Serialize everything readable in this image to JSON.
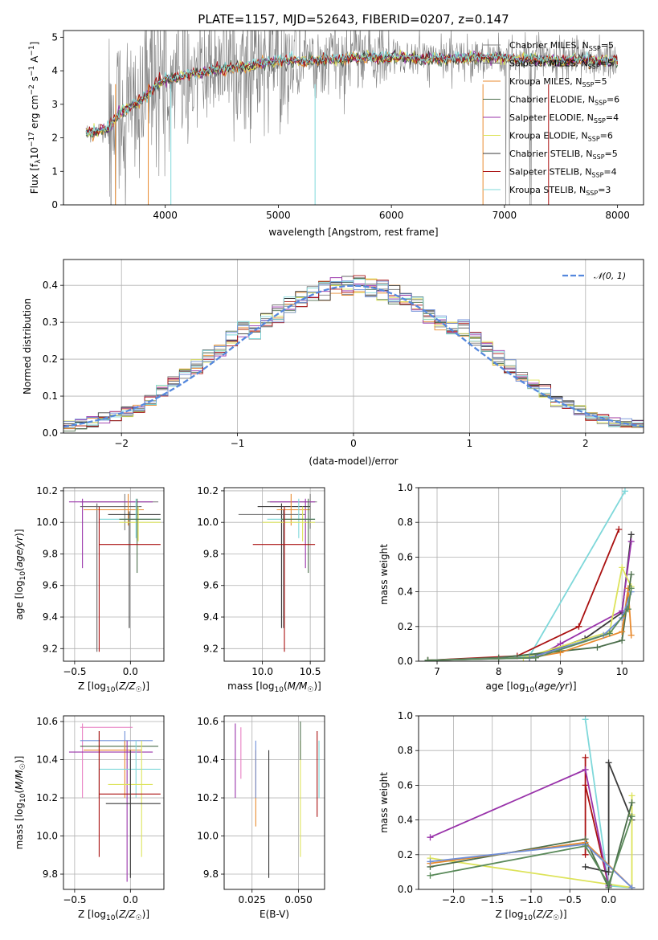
{
  "title": "PLATE=1157, MJD=52643, FIBERID=0207, z=0.147",
  "colors": {
    "c_miles": "#808080",
    "s_miles": "#666666",
    "k_miles": "#e88a2e",
    "c_elodie": "#4b6e4b",
    "s_elodie": "#9933aa",
    "k_elodie": "#dde35a",
    "c_stelib": "#3a3a3a",
    "s_stelib": "#aa1111",
    "k_stelib": "#7fd8da",
    "gauss": "#5588dd",
    "pink": "#e87fc2",
    "blue": "#6f8fd8",
    "green": "#5a8a5a"
  },
  "chart_data": [
    {
      "id": "spectrum",
      "type": "line",
      "xlabel": "wavelength [Angstrom, rest frame]",
      "ylabel": "Flux [f_λ 10^-17 erg cm^-2 s^-1 A^-1]",
      "xlim": [
        3100,
        8230
      ],
      "ylim": [
        0,
        5.2
      ],
      "xticks": [
        4000,
        5000,
        6000,
        7000,
        8000
      ],
      "yticks": [
        0,
        1,
        2,
        3,
        4,
        5
      ],
      "legend": [
        {
          "label": "Chabrier MILES, N",
          "sub": "SSP",
          "n": "=5",
          "color": "#808080"
        },
        {
          "label": "Salpeter MILES, N",
          "sub": "SSP",
          "n": "=5",
          "color": "#666666"
        },
        {
          "label": "Kroupa MILES, N",
          "sub": "SSP",
          "n": "=5",
          "color": "#e88a2e"
        },
        {
          "label": "Chabrier ELODIE, N",
          "sub": "SSP",
          "n": "=6",
          "color": "#4b6e4b"
        },
        {
          "label": "Salpeter ELODIE, N",
          "sub": "SSP",
          "n": "=4",
          "color": "#9933aa"
        },
        {
          "label": "Kroupa ELODIE, N",
          "sub": "SSP",
          "n": "=6",
          "color": "#dde35a"
        },
        {
          "label": "Chabrier STELIB, N",
          "sub": "SSP",
          "n": "=5",
          "color": "#3a3a3a"
        },
        {
          "label": "Salpeter STELIB, N",
          "sub": "SSP",
          "n": "=4",
          "color": "#aa1111"
        },
        {
          "label": "Kroupa STELIB, N",
          "sub": "SSP",
          "n": "=3",
          "color": "#7fd8da"
        }
      ],
      "continuum": {
        "x": [
          3300,
          3400,
          3500,
          3600,
          3700,
          3800,
          3900,
          4000,
          4100,
          4200,
          4300,
          4500,
          4700,
          4900,
          5100,
          5300,
          5500,
          5700,
          5900,
          6100,
          6300,
          6500,
          6700,
          6900,
          7100,
          7300,
          7500,
          7700,
          7900,
          8000
        ],
        "y": [
          2.15,
          2.2,
          2.3,
          2.75,
          2.95,
          3.15,
          3.5,
          3.75,
          3.8,
          3.9,
          3.95,
          4.05,
          4.1,
          4.25,
          4.3,
          4.3,
          4.35,
          4.4,
          4.4,
          4.4,
          4.35,
          4.35,
          4.4,
          4.4,
          4.35,
          4.35,
          4.3,
          4.35,
          4.3,
          4.3
        ]
      }
    },
    {
      "id": "residuals",
      "type": "step",
      "xlabel": "(data-model)/error",
      "ylabel": "Normed distribution",
      "xlim": [
        -2.5,
        2.5
      ],
      "ylim": [
        0,
        0.47
      ],
      "xticks": [
        -2,
        -1,
        0,
        1,
        2
      ],
      "yticks": [
        0.0,
        0.1,
        0.2,
        0.3,
        0.4
      ],
      "gauss_label": "𝒩(0, 1)",
      "bin_width": 0.1
    },
    {
      "id": "age_vs_Z",
      "type": "errorbar",
      "xlabel": "Z [log₁₀(Z/Z☉)]",
      "ylabel": "age [log₁₀(age/yr)]",
      "xlim": [
        -0.6,
        0.3
      ],
      "ylim": [
        9.12,
        10.22
      ],
      "xticks": [
        -0.5,
        0.0
      ],
      "yticks": [
        9.2,
        9.4,
        9.6,
        9.8,
        10.0,
        10.2
      ],
      "points": [
        {
          "x": -0.05,
          "xe": [
            -0.45,
            0.25
          ],
          "y": 10.13,
          "ye": [
            9.95,
            10.18
          ],
          "c": "#808080"
        },
        {
          "x": -0.43,
          "xe": [
            -0.55,
            0.2
          ],
          "y": 10.13,
          "ye": [
            9.71,
            10.15
          ],
          "c": "#9933aa"
        },
        {
          "x": -0.3,
          "xe": [
            -0.45,
            0.1
          ],
          "y": 10.1,
          "ye": [
            9.18,
            10.12
          ],
          "c": "#666666"
        },
        {
          "x": -0.02,
          "xe": [
            -0.42,
            0.12
          ],
          "y": 10.08,
          "ye": [
            9.98,
            10.18
          ],
          "c": "#e88a2e"
        },
        {
          "x": -0.01,
          "xe": [
            -0.2,
            0.27
          ],
          "y": 10.05,
          "ye": [
            9.33,
            10.07
          ],
          "c": "#3a3a3a"
        },
        {
          "x": 0.05,
          "xe": [
            -0.28,
            0.27
          ],
          "y": 10.02,
          "ye": [
            9.9,
            10.15
          ],
          "c": "#7fd8da"
        },
        {
          "x": 0.07,
          "xe": [
            -0.1,
            0.27
          ],
          "y": 10.0,
          "ye": [
            9.88,
            10.1
          ],
          "c": "#dde35a"
        },
        {
          "x": 0.06,
          "xe": [
            -0.1,
            0.27
          ],
          "y": 10.02,
          "ye": [
            9.68,
            10.15
          ],
          "c": "#4b6e4b"
        },
        {
          "x": -0.28,
          "xe": [
            -0.28,
            0.27
          ],
          "y": 9.86,
          "ye": [
            9.18,
            10.1
          ],
          "c": "#aa1111"
        }
      ]
    },
    {
      "id": "age_vs_mass",
      "type": "errorbar",
      "xlabel": "mass [log₁₀(M/M☉)]",
      "ylabel": "",
      "xlim": [
        9.6,
        10.65
      ],
      "ylim": [
        9.12,
        10.22
      ],
      "xticks": [
        10.0,
        10.5
      ],
      "yticks": [
        9.2,
        9.4,
        9.6,
        9.8,
        10.0,
        10.2
      ],
      "points": [
        {
          "x": 10.5,
          "xe": [
            10.05,
            10.57
          ],
          "y": 10.13,
          "ye": [
            9.96,
            10.18
          ],
          "c": "#808080"
        },
        {
          "x": 10.45,
          "xe": [
            10.08,
            10.55
          ],
          "y": 10.13,
          "ye": [
            9.71,
            10.15
          ],
          "c": "#9933aa"
        },
        {
          "x": 10.2,
          "xe": [
            9.95,
            10.5
          ],
          "y": 10.1,
          "ye": [
            9.33,
            10.12
          ],
          "c": "#3a3a3a"
        },
        {
          "x": 10.3,
          "xe": [
            10.15,
            10.5
          ],
          "y": 10.08,
          "ye": [
            9.98,
            10.18
          ],
          "c": "#e88a2e"
        },
        {
          "x": 10.22,
          "xe": [
            9.75,
            10.45
          ],
          "y": 10.05,
          "ye": [
            9.33,
            10.08
          ],
          "c": "#666666"
        },
        {
          "x": 10.38,
          "xe": [
            10.05,
            10.55
          ],
          "y": 10.02,
          "ye": [
            9.9,
            10.15
          ],
          "c": "#7fd8da"
        },
        {
          "x": 10.42,
          "xe": [
            10.0,
            10.55
          ],
          "y": 10.0,
          "ye": [
            9.88,
            10.1
          ],
          "c": "#dde35a"
        },
        {
          "x": 10.48,
          "xe": [
            10.2,
            10.55
          ],
          "y": 10.02,
          "ye": [
            9.68,
            10.15
          ],
          "c": "#4b6e4b"
        },
        {
          "x": 10.23,
          "xe": [
            9.9,
            10.55
          ],
          "y": 9.86,
          "ye": [
            9.18,
            10.1
          ],
          "c": "#aa1111"
        }
      ]
    },
    {
      "id": "weight_vs_age",
      "type": "line",
      "xlabel": "age [log₁₀(age/yr)]",
      "ylabel": "mass weight",
      "xlim": [
        6.7,
        10.35
      ],
      "ylim": [
        0,
        1.0
      ],
      "xticks": [
        7,
        8,
        9,
        10
      ],
      "yticks": [
        0.0,
        0.2,
        0.4,
        0.6,
        0.8,
        1.0
      ],
      "series": [
        {
          "c": "#7fd8da",
          "x": [
            6.85,
            8.5,
            10.05
          ],
          "y": [
            0.005,
            0.03,
            0.98
          ]
        },
        {
          "c": "#aa1111",
          "x": [
            6.85,
            8.3,
            9.3,
            9.95
          ],
          "y": [
            0.005,
            0.03,
            0.2,
            0.76
          ]
        },
        {
          "c": "#3a3a3a",
          "x": [
            6.85,
            8.5,
            9.4,
            10.0,
            10.15
          ],
          "y": [
            0.005,
            0.02,
            0.13,
            0.28,
            0.73
          ]
        },
        {
          "c": "#9933aa",
          "x": [
            6.85,
            8.6,
            9.0,
            10.0,
            10.15
          ],
          "y": [
            0.005,
            0.02,
            0.1,
            0.29,
            0.69
          ]
        },
        {
          "c": "#dde35a",
          "x": [
            6.85,
            8.4,
            9.8,
            10.0,
            10.15
          ],
          "y": [
            0.005,
            0.02,
            0.17,
            0.54,
            0.43
          ]
        },
        {
          "c": "#4b6e4b",
          "x": [
            6.85,
            8.0,
            9.6,
            10.0,
            10.15
          ],
          "y": [
            0.005,
            0.02,
            0.08,
            0.12,
            0.5
          ]
        },
        {
          "c": "#e88a2e",
          "x": [
            6.85,
            8.5,
            9.0,
            10.0,
            10.1,
            10.15
          ],
          "y": [
            0.005,
            0.02,
            0.05,
            0.17,
            0.42,
            0.15
          ]
        },
        {
          "c": "#6f8fd8",
          "x": [
            6.85,
            8.5,
            9.7,
            10.0,
            10.15
          ],
          "y": [
            0.005,
            0.02,
            0.15,
            0.25,
            0.4
          ]
        },
        {
          "c": "#5a8a5a",
          "x": [
            6.85,
            8.6,
            9.8,
            10.1,
            10.15
          ],
          "y": [
            0.005,
            0.02,
            0.16,
            0.3,
            0.42
          ]
        }
      ]
    },
    {
      "id": "mass_vs_Z",
      "type": "errorbar",
      "xlabel": "Z [log₁₀(Z/Z☉)]",
      "ylabel": "mass [log₁₀(M/M☉)]",
      "xlim": [
        -0.6,
        0.3
      ],
      "ylim": [
        9.72,
        10.63
      ],
      "xticks": [
        -0.5,
        0.0
      ],
      "yticks": [
        9.8,
        10.0,
        10.2,
        10.4,
        10.6
      ],
      "points": [
        {
          "x": -0.43,
          "xe": [
            -0.45,
            0.02
          ],
          "y": 10.57,
          "ye": [
            10.2,
            10.59
          ],
          "c": "#e87fc2"
        },
        {
          "x": -0.05,
          "xe": [
            -0.45,
            0.2
          ],
          "y": 10.5,
          "ye": [
            10.45,
            10.55
          ],
          "c": "#6f8fd8"
        },
        {
          "x": -0.28,
          "xe": [
            -0.45,
            0.25
          ],
          "y": 10.47,
          "ye": [
            10.2,
            10.55
          ],
          "c": "#4b6e4b"
        },
        {
          "x": -0.05,
          "xe": [
            -0.42,
            0.1
          ],
          "y": 10.45,
          "ye": [
            10.2,
            10.5
          ],
          "c": "#e88a2e"
        },
        {
          "x": -0.03,
          "xe": [
            -0.55,
            0.2
          ],
          "y": 10.44,
          "ye": [
            9.76,
            10.5
          ],
          "c": "#9933aa"
        },
        {
          "x": 0.05,
          "xe": [
            -0.28,
            0.27
          ],
          "y": 10.35,
          "ye": [
            10.2,
            10.5
          ],
          "c": "#7fd8da"
        },
        {
          "x": 0.1,
          "xe": [
            -0.2,
            0.2
          ],
          "y": 10.27,
          "ye": [
            9.89,
            10.5
          ],
          "c": "#dde35a"
        },
        {
          "x": -0.28,
          "xe": [
            -0.28,
            0.27
          ],
          "y": 10.22,
          "ye": [
            9.89,
            10.55
          ],
          "c": "#aa1111"
        },
        {
          "x": 0.0,
          "xe": [
            -0.22,
            0.27
          ],
          "y": 10.17,
          "ye": [
            9.78,
            10.45
          ],
          "c": "#3a3a3a"
        }
      ]
    },
    {
      "id": "mass_vs_ebv",
      "type": "errorbar",
      "xlabel": "E(B-V)",
      "ylabel": "",
      "xlim": [
        0.01,
        0.064
      ],
      "ylim": [
        9.72,
        10.63
      ],
      "xticks": [
        0.025,
        0.05
      ],
      "yticks": [
        9.8,
        10.0,
        10.2,
        10.4,
        10.6
      ],
      "points": [
        {
          "x": 0.016,
          "ye": [
            10.2,
            10.59
          ],
          "c": "#9933aa"
        },
        {
          "x": 0.019,
          "ye": [
            10.3,
            10.57
          ],
          "c": "#e87fc2"
        },
        {
          "x": 0.027,
          "ye": [
            10.05,
            10.45
          ],
          "c": "#e88a2e"
        },
        {
          "x": 0.027,
          "ye": [
            10.2,
            10.5
          ],
          "c": "#6f8fd8"
        },
        {
          "x": 0.034,
          "ye": [
            9.78,
            10.45
          ],
          "c": "#3a3a3a"
        },
        {
          "x": 0.051,
          "ye": [
            9.89,
            10.5
          ],
          "c": "#dde35a"
        },
        {
          "x": 0.051,
          "ye": [
            10.4,
            10.6
          ],
          "c": "#4b6e4b"
        },
        {
          "x": 0.06,
          "ye": [
            10.1,
            10.55
          ],
          "c": "#aa1111"
        },
        {
          "x": 0.061,
          "ye": [
            10.2,
            10.5
          ],
          "c": "#7fd8da"
        }
      ]
    },
    {
      "id": "weight_vs_Z",
      "type": "line",
      "xlabel": "Z [log₁₀(Z/Z☉)]",
      "ylabel": "mass weight",
      "xlim": [
        -2.45,
        0.45
      ],
      "ylim": [
        0,
        1.0
      ],
      "xticks": [
        -2.0,
        -1.5,
        -1.0,
        -0.5,
        0.0
      ],
      "yticks": [
        0.0,
        0.2,
        0.4,
        0.6,
        0.8,
        1.0
      ],
      "series": [
        {
          "c": "#7fd8da",
          "x": [
            -0.3,
            0.0,
            0.3
          ],
          "y": [
            0.98,
            0.02,
            0.01
          ]
        },
        {
          "c": "#aa1111",
          "x": [
            -0.3,
            -0.3,
            -0.3,
            0.0
          ],
          "y": [
            0.76,
            0.2,
            0.6,
            0.02
          ]
        },
        {
          "c": "#9933aa",
          "x": [
            -2.3,
            -0.3,
            0.0
          ],
          "y": [
            0.3,
            0.69,
            0.02
          ]
        },
        {
          "c": "#3a3a3a",
          "x": [
            -0.3,
            0.0,
            0.0,
            0.3
          ],
          "y": [
            0.13,
            0.1,
            0.73,
            0.4
          ]
        },
        {
          "c": "#dde35a",
          "x": [
            -2.3,
            0.3,
            0.3,
            0.3
          ],
          "y": [
            0.18,
            0.01,
            0.54,
            0.43
          ]
        },
        {
          "c": "#4b6e4b",
          "x": [
            -2.3,
            -0.3,
            0.0,
            0.3
          ],
          "y": [
            0.13,
            0.29,
            0.01,
            0.5
          ]
        },
        {
          "c": "#e88a2e",
          "x": [
            -2.3,
            -0.3,
            0.3
          ],
          "y": [
            0.15,
            0.27,
            0.01
          ]
        },
        {
          "c": "#6f8fd8",
          "x": [
            -2.3,
            -0.3,
            0.3
          ],
          "y": [
            0.16,
            0.26,
            0.01
          ]
        },
        {
          "c": "#5a8a5a",
          "x": [
            -2.3,
            -0.3,
            0.0,
            0.3
          ],
          "y": [
            0.08,
            0.25,
            0.03,
            0.42
          ]
        }
      ]
    }
  ]
}
